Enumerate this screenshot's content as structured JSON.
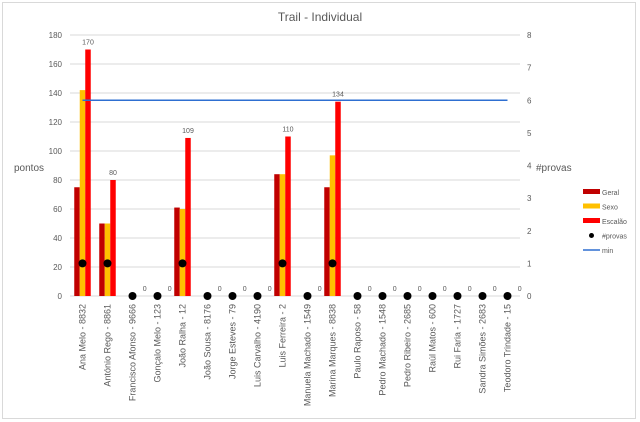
{
  "chart_data": {
    "type": "bar",
    "title": "Trail - Individual",
    "ylabel": "pontos",
    "y2label": "#provas",
    "ylim": [
      0,
      180
    ],
    "yticks": [
      0,
      20,
      40,
      60,
      80,
      100,
      120,
      140,
      160,
      180
    ],
    "y2lim": [
      0,
      8
    ],
    "y2ticks": [
      0,
      1,
      2,
      3,
      4,
      5,
      6,
      7,
      8
    ],
    "grid": true,
    "legend_position": "right",
    "categories": [
      "Ana Melo - 8832",
      "António Rego - 8861",
      "Francisco Afonso - 9666",
      "Gonçalo Melo - 123",
      "João Ralha - 12",
      "João Sousa - 8176",
      "Jorge Esteves - 79",
      "Luis Carvalho - 4190",
      "Luis Ferreira - 2",
      "Manuela Machado - 1549",
      "Marina Marques - 8838",
      "Paulo Raposo - 58",
      "Pedro Machado - 1548",
      "Pedro Ribeiro - 2685",
      "Raúl Matos - 600",
      "Rui Faria - 1727",
      "Sandra Simões - 2683",
      "Teodoro Trindade - 15"
    ],
    "series": [
      {
        "name": "Geral",
        "color": "#c00000",
        "values": [
          75,
          50,
          0,
          0,
          61,
          0,
          0,
          0,
          84,
          0,
          75,
          0,
          0,
          0,
          0,
          0,
          0,
          0
        ]
      },
      {
        "name": "Sexo",
        "color": "#ffc000",
        "values": [
          142,
          50,
          0,
          0,
          60,
          0,
          0,
          0,
          84,
          0,
          97,
          0,
          0,
          0,
          0,
          0,
          0,
          0
        ]
      },
      {
        "name": "Escalão",
        "color": "#ff0000",
        "values": [
          170,
          80,
          0,
          0,
          109,
          0,
          0,
          0,
          110,
          0,
          134,
          0,
          0,
          0,
          0,
          0,
          0,
          0
        ],
        "labels": [
          "170",
          "80",
          "0",
          "0",
          "109",
          "0",
          "0",
          "0",
          "110",
          "0",
          "134",
          "0",
          "0",
          "0",
          "0",
          "0",
          "0",
          "0"
        ]
      },
      {
        "name": "#provas",
        "color": "#000000",
        "axis": "right",
        "type": "scatter",
        "values": [
          1,
          1,
          0,
          0,
          1,
          0,
          0,
          0,
          1,
          0,
          1,
          0,
          0,
          0,
          0,
          0,
          0,
          0
        ]
      },
      {
        "name": "min",
        "color": "#2e6fd1",
        "axis": "right",
        "type": "line",
        "value": 6
      }
    ]
  }
}
